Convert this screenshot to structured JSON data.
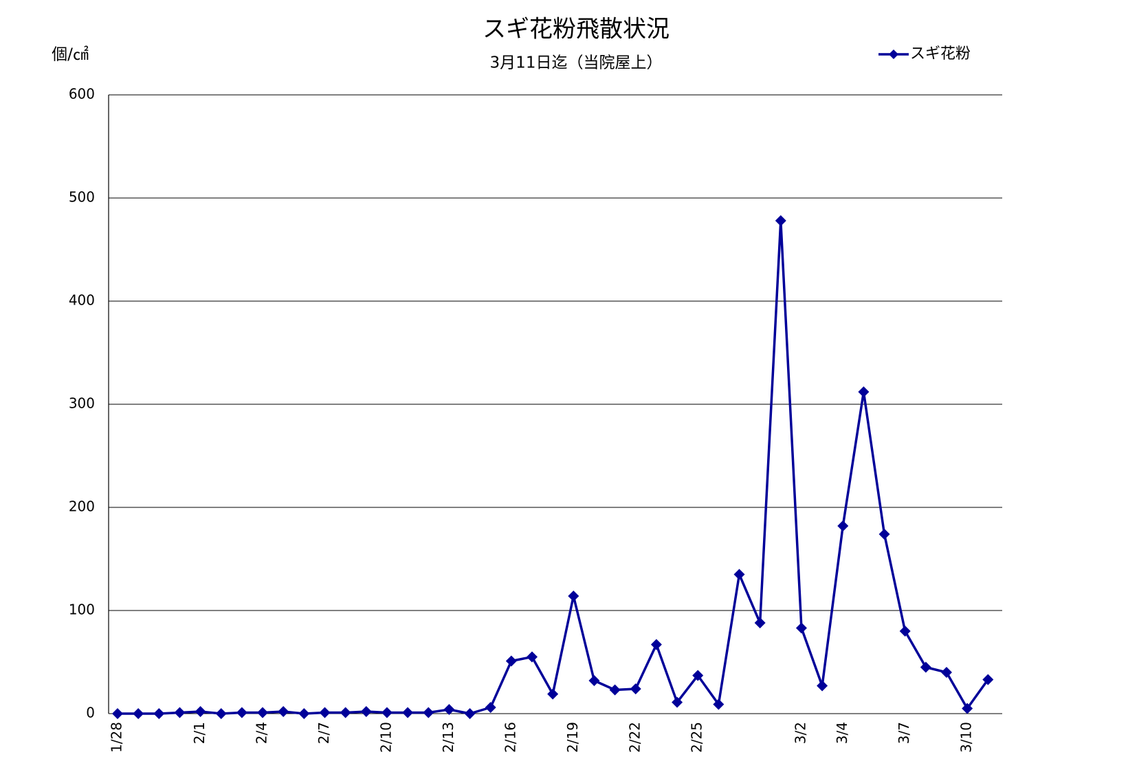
{
  "chart_data": {
    "type": "line",
    "title": "スギ花粉飛散状況",
    "subtitle": "3月11日迄（当院屋上）",
    "y_label": "個/㎠",
    "categories": [
      "1/28",
      null,
      null,
      null,
      "2/1",
      null,
      null,
      "2/4",
      null,
      null,
      "2/7",
      null,
      null,
      "2/10",
      null,
      null,
      "2/13",
      null,
      null,
      "2/16",
      null,
      null,
      "2/19",
      null,
      null,
      "2/22",
      null,
      null,
      "2/25",
      null,
      null,
      null,
      null,
      "3/2",
      null,
      "3/4",
      null,
      null,
      "3/7",
      null,
      null,
      "3/10",
      null
    ],
    "series": [
      {
        "name": "スギ花粉",
        "color": "#000099",
        "values": [
          0,
          0,
          0,
          1,
          2,
          0,
          1,
          1,
          2,
          0,
          1,
          1,
          2,
          1,
          1,
          1,
          4,
          0,
          6,
          51,
          55,
          19,
          114,
          32,
          23,
          24,
          67,
          11,
          37,
          9,
          135,
          88,
          478,
          83,
          27,
          182,
          312,
          174,
          80,
          45,
          40,
          5,
          33
        ]
      }
    ],
    "ylim": [
      0,
      600
    ],
    "yticks": [
      0,
      100,
      200,
      300,
      400,
      500,
      600
    ],
    "grid": true,
    "legend": "top-right"
  }
}
